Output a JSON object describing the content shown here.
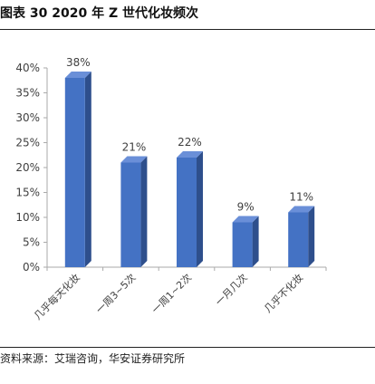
{
  "figure": {
    "title": "图表 30 2020 年 Z 世代化妆频次",
    "source": "资料来源：艾瑞咨询，华安证券研究所"
  },
  "colors": {
    "bar_front": "#4472C4",
    "bar_side": "#2E4F8C",
    "bar_top": "#6A8FD8",
    "axis": "#AAAAAA",
    "text": "#404040"
  },
  "chart_data": {
    "type": "bar",
    "categories": [
      "几乎每天化妆",
      "一周3~5次",
      "一周1~2次",
      "一月几次",
      "几乎不化妆"
    ],
    "values": [
      38,
      21,
      22,
      9,
      11
    ],
    "value_labels": [
      "38%",
      "21%",
      "22%",
      "9%",
      "11%"
    ],
    "ylim": [
      0,
      40
    ],
    "yticks": [
      "0%",
      "5%",
      "10%",
      "15%",
      "20%",
      "25%",
      "30%",
      "35%",
      "40%"
    ],
    "title": "",
    "xlabel": "",
    "ylabel": "",
    "grid": false,
    "legend": "none",
    "style": "3d-column"
  }
}
